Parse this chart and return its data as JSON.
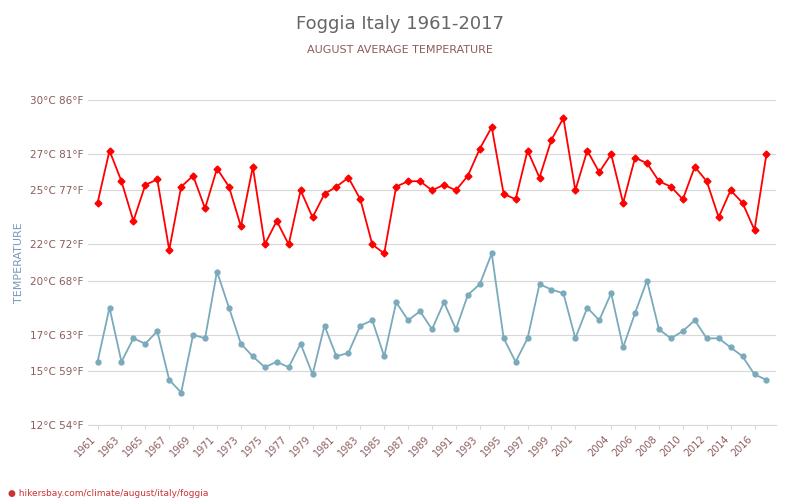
{
  "title": "Foggia Italy 1961-2017",
  "subtitle": "AUGUST AVERAGE TEMPERATURE",
  "ylabel": "TEMPERATURE",
  "watermark": "hikersbay.com/climate/august/italy/foggia",
  "title_color": "#666666",
  "subtitle_color": "#8B5C5C",
  "ylabel_color": "#7799bb",
  "watermark_color": "#cc3333",
  "bg_color": "#ffffff",
  "grid_color": "#d8d8d8",
  "years": [
    1961,
    1962,
    1963,
    1964,
    1965,
    1966,
    1967,
    1968,
    1969,
    1970,
    1971,
    1972,
    1973,
    1974,
    1975,
    1976,
    1977,
    1978,
    1979,
    1980,
    1981,
    1982,
    1983,
    1984,
    1985,
    1986,
    1987,
    1988,
    1989,
    1990,
    1991,
    1992,
    1993,
    1994,
    1995,
    1996,
    1997,
    1998,
    1999,
    2000,
    2001,
    2002,
    2003,
    2004,
    2005,
    2006,
    2007,
    2008,
    2009,
    2010,
    2011,
    2012,
    2013,
    2014,
    2015,
    2016,
    2017
  ],
  "day_temps": [
    24.3,
    27.2,
    25.5,
    23.3,
    25.3,
    25.6,
    21.7,
    25.2,
    25.8,
    24.0,
    26.2,
    25.2,
    23.0,
    26.3,
    22.0,
    23.3,
    22.0,
    25.0,
    23.5,
    24.8,
    25.2,
    25.7,
    24.5,
    22.0,
    21.5,
    25.2,
    25.5,
    25.5,
    25.0,
    25.3,
    25.0,
    25.8,
    27.3,
    28.5,
    24.8,
    24.5,
    27.2,
    25.7,
    27.8,
    29.0,
    25.0,
    27.2,
    26.0,
    27.0,
    24.3,
    26.8,
    26.5,
    25.5,
    25.2,
    24.5,
    26.3,
    25.5,
    23.5,
    25.0,
    24.3,
    22.8,
    27.0
  ],
  "night_temps": [
    15.5,
    18.5,
    15.5,
    16.8,
    16.5,
    17.2,
    14.5,
    13.8,
    17.0,
    16.8,
    20.5,
    18.5,
    16.5,
    15.8,
    15.2,
    15.5,
    15.2,
    16.5,
    14.8,
    17.5,
    15.8,
    16.0,
    17.5,
    17.8,
    15.8,
    18.8,
    17.8,
    18.3,
    17.3,
    18.8,
    17.3,
    19.2,
    19.8,
    21.5,
    16.8,
    15.5,
    16.8,
    19.8,
    19.5,
    19.3,
    16.8,
    18.5,
    17.8,
    19.3,
    16.3,
    18.2,
    20.0,
    17.3,
    16.8,
    17.2,
    17.8,
    16.8,
    16.8,
    16.3,
    15.8,
    14.8,
    14.5
  ],
  "day_color": "#ff0000",
  "night_color": "#7aaabb",
  "marker_size": 3.5,
  "ylim_min": 12,
  "ylim_max": 30,
  "yticks_c": [
    12,
    15,
    17,
    20,
    22,
    25,
    27,
    30
  ],
  "yticks_f": [
    54,
    59,
    63,
    68,
    72,
    77,
    81,
    86
  ],
  "xtick_years": [
    1961,
    1963,
    1965,
    1967,
    1969,
    1971,
    1973,
    1975,
    1977,
    1979,
    1981,
    1983,
    1985,
    1987,
    1989,
    1991,
    1993,
    1995,
    1997,
    1999,
    2001,
    2004,
    2006,
    2008,
    2010,
    2012,
    2014,
    2016
  ],
  "xlim_min": 1960.2,
  "xlim_max": 2017.8
}
